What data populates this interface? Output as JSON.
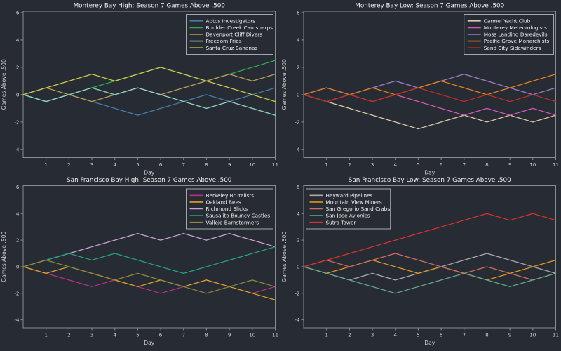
{
  "figure": {
    "background": "#272b33",
    "title_color": "#f2f2f2",
    "axis_color": "#878c95",
    "tick_label_color": "#cdd0d4",
    "legend_border_color": "#c4c7cc"
  },
  "chart_data": [
    {
      "type": "line",
      "title": "Monterey Bay High: Season 7 Games Above .500",
      "xlabel": "Day",
      "ylabel": "Games Above .500",
      "x": [
        0,
        1,
        2,
        3,
        4,
        5,
        6,
        7,
        8,
        9,
        10,
        11
      ],
      "xticks": [
        1,
        2,
        3,
        4,
        5,
        6,
        7,
        8,
        9,
        10,
        11
      ],
      "yticks": [
        -4,
        -2,
        0,
        2,
        4,
        6
      ],
      "xlim": [
        0,
        11
      ],
      "ylim": [
        -4.6,
        6.1
      ],
      "grid": false,
      "legend_position": "upper-right",
      "series": [
        {
          "name": "Aptos Investigators",
          "color": "#4a7aa5",
          "values": [
            0,
            -0.5,
            0,
            -0.5,
            -1,
            -1.5,
            -1,
            -0.5,
            0,
            -0.5,
            0,
            0.5
          ]
        },
        {
          "name": "Boulder Creek Cardsharps",
          "color": "#2fa94f",
          "values": [
            0,
            -0.5,
            0,
            0.5,
            1,
            1.5,
            2,
            1.5,
            1,
            1.5,
            2,
            2.5
          ]
        },
        {
          "name": "Davenport Cliff Divers",
          "color": "#bb9d58",
          "values": [
            0,
            0.5,
            0,
            -0.5,
            0,
            0.5,
            0,
            0.5,
            1,
            1.5,
            1,
            1.5
          ]
        },
        {
          "name": "Freedom Fries",
          "color": "#97d3c5",
          "values": [
            0,
            -0.5,
            0,
            0.5,
            0,
            0.5,
            0,
            -0.5,
            -1,
            -0.5,
            -1,
            -1.5
          ]
        },
        {
          "name": "Santa Cruz Bananas",
          "color": "#cbc84c",
          "values": [
            0,
            0.5,
            1,
            1.5,
            1,
            1.5,
            2,
            1.5,
            1,
            0.5,
            0,
            -0.5
          ]
        }
      ]
    },
    {
      "type": "line",
      "title": "Monterey Bay Low: Season 7 Games Above .500",
      "xlabel": "Day",
      "ylabel": "Games Above .500",
      "x": [
        0,
        1,
        2,
        3,
        4,
        5,
        6,
        7,
        8,
        9,
        10,
        11
      ],
      "xticks": [
        1,
        2,
        3,
        4,
        5,
        6,
        7,
        8,
        9,
        10,
        11
      ],
      "yticks": [
        -4,
        -2,
        0,
        2,
        4,
        6
      ],
      "xlim": [
        0,
        11
      ],
      "ylim": [
        -4.6,
        6.1
      ],
      "grid": false,
      "legend_position": "upper-right",
      "series": [
        {
          "name": "Carmel Yacht Club",
          "color": "#d9cba9",
          "values": [
            0,
            -0.5,
            -1,
            -1.5,
            -2,
            -2.5,
            -2,
            -1.5,
            -2,
            -1.5,
            -2,
            -1.5
          ]
        },
        {
          "name": "Monterey Meteorologists",
          "color": "#d457b2",
          "values": [
            0,
            -0.5,
            0,
            -0.5,
            0,
            -0.5,
            -1,
            -1.5,
            -1,
            -1.5,
            -1,
            -1.5
          ]
        },
        {
          "name": "Moss Landing Daredevils",
          "color": "#a17cc4",
          "values": [
            0,
            0.5,
            0,
            0.5,
            1,
            0.5,
            1,
            1.5,
            1,
            0.5,
            0,
            0.5
          ]
        },
        {
          "name": "Pacific Grove Monarchists",
          "color": "#e2801e",
          "values": [
            0,
            0.5,
            0,
            0.5,
            0,
            0.5,
            1,
            0.5,
            0,
            0.5,
            1,
            1.5
          ]
        },
        {
          "name": "Sand City Sidewinders",
          "color": "#bb2d27",
          "values": [
            0,
            -0.5,
            0,
            -0.5,
            0,
            0.5,
            0,
            -0.5,
            0,
            -0.5,
            0,
            -0.5
          ]
        }
      ]
    },
    {
      "type": "line",
      "title": "San Francisco Bay High: Season 7 Games Above .500",
      "xlabel": "Day",
      "ylabel": "Games Above .500",
      "x": [
        0,
        1,
        2,
        3,
        4,
        5,
        6,
        7,
        8,
        9,
        10,
        11
      ],
      "xticks": [
        1,
        2,
        3,
        4,
        5,
        6,
        7,
        8,
        9,
        10,
        11
      ],
      "yticks": [
        -4,
        -2,
        0,
        2,
        4,
        6
      ],
      "xlim": [
        0,
        11
      ],
      "ylim": [
        -4.6,
        6.1
      ],
      "grid": false,
      "legend_position": "upper-right",
      "series": [
        {
          "name": "Berkeley Brutalists",
          "color": "#b62f86",
          "values": [
            0,
            -0.5,
            -1,
            -1.5,
            -1,
            -1.5,
            -2,
            -1.5,
            -1,
            -1.5,
            -2,
            -1.5
          ]
        },
        {
          "name": "Oakland Bees",
          "color": "#e0a32a",
          "values": [
            0,
            -0.5,
            0,
            -0.5,
            -1,
            -1.5,
            -1,
            -1.5,
            -1,
            -1.5,
            -2,
            -2.5
          ]
        },
        {
          "name": "Richmond Slicks",
          "color": "#c9a2d6",
          "values": [
            0,
            0.5,
            1,
            1.5,
            2,
            2.5,
            2,
            2.5,
            2,
            2.5,
            2,
            1.5
          ]
        },
        {
          "name": "Sausalito Bouncy Castles",
          "color": "#27a27b",
          "values": [
            0,
            0.5,
            1,
            0.5,
            1,
            0.5,
            0,
            -0.5,
            0,
            0.5,
            1,
            1.5
          ]
        },
        {
          "name": "Vallejo Barnstormers",
          "color": "#8b8b3d",
          "values": [
            0,
            0.5,
            0,
            -0.5,
            -1,
            -0.5,
            -1,
            -1.5,
            -2,
            -1.5,
            -1,
            -1.5
          ]
        }
      ]
    },
    {
      "type": "line",
      "title": "San Francisco Bay Low: Season 7 Games Above .500",
      "xlabel": "Day",
      "ylabel": "Games Above .500",
      "x": [
        0,
        1,
        2,
        3,
        4,
        5,
        6,
        7,
        8,
        9,
        10,
        11
      ],
      "xticks": [
        1,
        2,
        3,
        4,
        5,
        6,
        7,
        8,
        9,
        10,
        11
      ],
      "yticks": [
        -4,
        -2,
        0,
        2,
        4,
        6
      ],
      "xlim": [
        0,
        11
      ],
      "ylim": [
        -4.6,
        6.1
      ],
      "grid": false,
      "legend_position": "upper-left",
      "series": [
        {
          "name": "Hayward Pipelines",
          "color": "#aaaaaa",
          "values": [
            0,
            -0.5,
            -1,
            -0.5,
            -1,
            -0.5,
            0,
            0.5,
            1,
            0.5,
            0,
            -0.5
          ]
        },
        {
          "name": "Mountain View Miners",
          "color": "#e2951f",
          "values": [
            0,
            -0.5,
            0,
            0.5,
            0,
            -0.5,
            0,
            -0.5,
            -1,
            -0.5,
            0,
            0.5
          ]
        },
        {
          "name": "San Gregorio Sand Crabs",
          "color": "#cc6f62",
          "values": [
            0,
            0.5,
            0,
            0.5,
            1,
            0.5,
            0,
            -0.5,
            0,
            -0.5,
            -1,
            -0.5
          ]
        },
        {
          "name": "San Jose Avionics",
          "color": "#64a98d",
          "values": [
            0,
            -0.5,
            -1,
            -1.5,
            -2,
            -1.5,
            -1,
            -0.5,
            -1,
            -1.5,
            -1,
            -0.5
          ]
        },
        {
          "name": "Sutro Tower",
          "color": "#d63230",
          "values": [
            0,
            0.5,
            1,
            1.5,
            2,
            2.5,
            3,
            3.5,
            4,
            3.5,
            4,
            3.5
          ]
        }
      ]
    }
  ]
}
